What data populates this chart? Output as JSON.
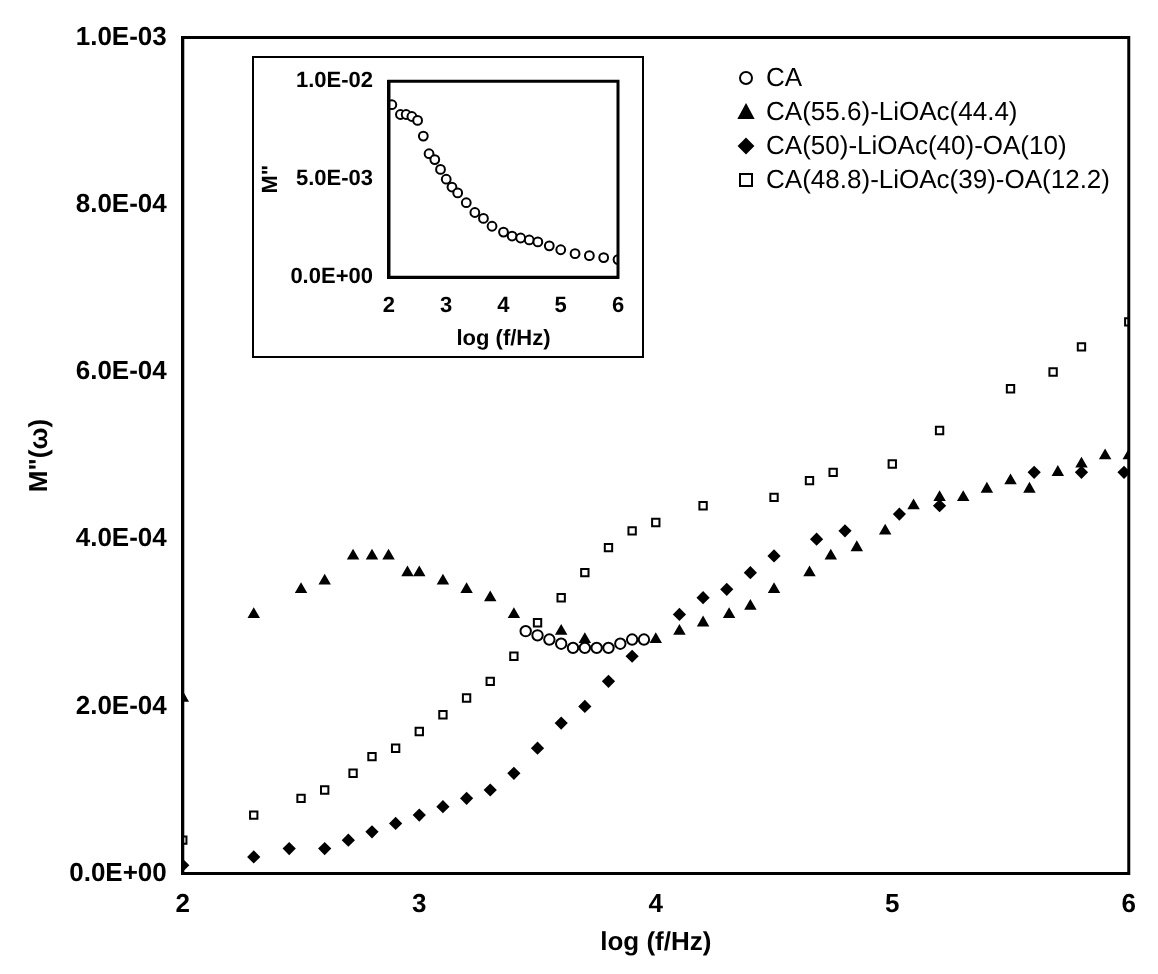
{
  "chart_data": [
    {
      "type": "scatter",
      "xlabel": "log (f/Hz)",
      "ylabel": "M\"(ω)",
      "xlim": [
        2,
        6
      ],
      "xticks": [
        2,
        3,
        4,
        5,
        6
      ],
      "ylim": [
        0,
        0.001
      ],
      "yticks": [
        {
          "value": 0,
          "label": "0.0E+00"
        },
        {
          "value": 0.0002,
          "label": "2.0E-04"
        },
        {
          "value": 0.0004,
          "label": "4.0E-04"
        },
        {
          "value": 0.0006,
          "label": "6.0E-04"
        },
        {
          "value": 0.0008,
          "label": "8.0E-04"
        },
        {
          "value": 0.001,
          "label": "1.0E-03"
        }
      ],
      "grid": false,
      "legend": "top right",
      "series": [
        {
          "name": "CA",
          "color": "#000000",
          "marker": "circle",
          "x": [
            3.45,
            3.5,
            3.55,
            3.6,
            3.65,
            3.7,
            3.75,
            3.8,
            3.85,
            3.9,
            3.95
          ],
          "values": [
            0.00029,
            0.000285,
            0.00028,
            0.000275,
            0.00027,
            0.00027,
            0.00027,
            0.00027,
            0.000275,
            0.00028,
            0.00028
          ]
        },
        {
          "name": "CA(55.6)-LiOAc(44.4)",
          "color": "#000000",
          "marker": "triangle",
          "x": [
            2,
            2.3,
            2.5,
            2.6,
            2.72,
            2.8,
            2.87,
            2.95,
            3.0,
            3.1,
            3.2,
            3.3,
            3.4,
            3.6,
            3.7,
            4.0,
            4.1,
            4.2,
            4.31,
            4.4,
            4.5,
            4.65,
            4.74,
            4.85,
            4.97,
            5.09,
            5.2,
            5.3,
            5.4,
            5.5,
            5.58,
            5.7,
            5.8,
            5.9,
            6.0
          ],
          "values": [
            0.00021,
            0.00031,
            0.00034,
            0.00035,
            0.00038,
            0.00038,
            0.00038,
            0.00036,
            0.00036,
            0.00035,
            0.00034,
            0.00033,
            0.00031,
            0.00029,
            0.00028,
            0.00028,
            0.00029,
            0.0003,
            0.00031,
            0.00032,
            0.00034,
            0.00036,
            0.00038,
            0.00039,
            0.00041,
            0.00044,
            0.00045,
            0.00045,
            0.00046,
            0.00047,
            0.00046,
            0.00048,
            0.00049,
            0.0005,
            0.0005
          ]
        },
        {
          "name": "CA(50)-LiOAc(40)-OA(10)",
          "color": "#000000",
          "marker": "diamond",
          "x": [
            2,
            2.3,
            2.45,
            2.6,
            2.7,
            2.8,
            2.9,
            3.0,
            3.1,
            3.2,
            3.3,
            3.4,
            3.5,
            3.6,
            3.7,
            3.8,
            3.9,
            4.1,
            4.2,
            4.3,
            4.4,
            4.5,
            4.68,
            4.8,
            5.03,
            5.2,
            5.6,
            5.8,
            5.98
          ],
          "values": [
            1e-05,
            2e-05,
            3e-05,
            3e-05,
            4e-05,
            5e-05,
            6e-05,
            7e-05,
            8e-05,
            9e-05,
            0.0001,
            0.00012,
            0.00015,
            0.00018,
            0.0002,
            0.00023,
            0.00026,
            0.00031,
            0.00033,
            0.00034,
            0.00036,
            0.00038,
            0.0004,
            0.00041,
            0.00043,
            0.00044,
            0.00048,
            0.00048,
            0.00048
          ]
        },
        {
          "name": "CA(48.8)-LiOAc(39)-OA(12.2)",
          "color": "#000000",
          "marker": "square",
          "x": [
            2,
            2.3,
            2.5,
            2.6,
            2.72,
            2.8,
            2.9,
            3.0,
            3.1,
            3.2,
            3.3,
            3.4,
            3.5,
            3.6,
            3.7,
            3.8,
            3.9,
            4.0,
            4.2,
            4.5,
            4.65,
            4.75,
            5.0,
            5.2,
            5.5,
            5.68,
            5.8,
            6.0
          ],
          "values": [
            4e-05,
            7e-05,
            9e-05,
            0.0001,
            0.00012,
            0.00014,
            0.00015,
            0.00017,
            0.00019,
            0.00021,
            0.00023,
            0.00026,
            0.0003,
            0.00033,
            0.00036,
            0.00039,
            0.00041,
            0.00042,
            0.00044,
            0.00045,
            0.00047,
            0.00048,
            0.00049,
            0.00053,
            0.00058,
            0.0006,
            0.00063,
            0.00066
          ]
        }
      ]
    },
    {
      "type": "scatter",
      "xlabel": "log (f/Hz)",
      "ylabel": "M\"",
      "xlim": [
        2,
        6
      ],
      "xticks": [
        2,
        3,
        4,
        5,
        6
      ],
      "ylim": [
        0,
        0.01
      ],
      "yticks": [
        {
          "value": 0,
          "label": "0.0E+00"
        },
        {
          "value": 0.005,
          "label": "5.0E-03"
        },
        {
          "value": 0.01,
          "label": "1.0E-02"
        }
      ],
      "grid": false,
      "series": [
        {
          "color": "#000000",
          "marker": "circle",
          "x": [
            2.05,
            2.2,
            2.3,
            2.4,
            2.5,
            2.6,
            2.7,
            2.8,
            2.9,
            3.0,
            3.1,
            3.2,
            3.35,
            3.5,
            3.65,
            3.8,
            4.0,
            4.15,
            4.3,
            4.45,
            4.6,
            4.8,
            5.0,
            5.25,
            5.5,
            5.75,
            6.0
          ],
          "values": [
            0.0088,
            0.0083,
            0.0083,
            0.0082,
            0.008,
            0.0072,
            0.0063,
            0.006,
            0.0055,
            0.005,
            0.0046,
            0.0043,
            0.0038,
            0.0033,
            0.003,
            0.0026,
            0.0023,
            0.0021,
            0.002,
            0.0019,
            0.0018,
            0.0016,
            0.0014,
            0.0012,
            0.0011,
            0.001,
            0.0009
          ]
        }
      ]
    }
  ]
}
